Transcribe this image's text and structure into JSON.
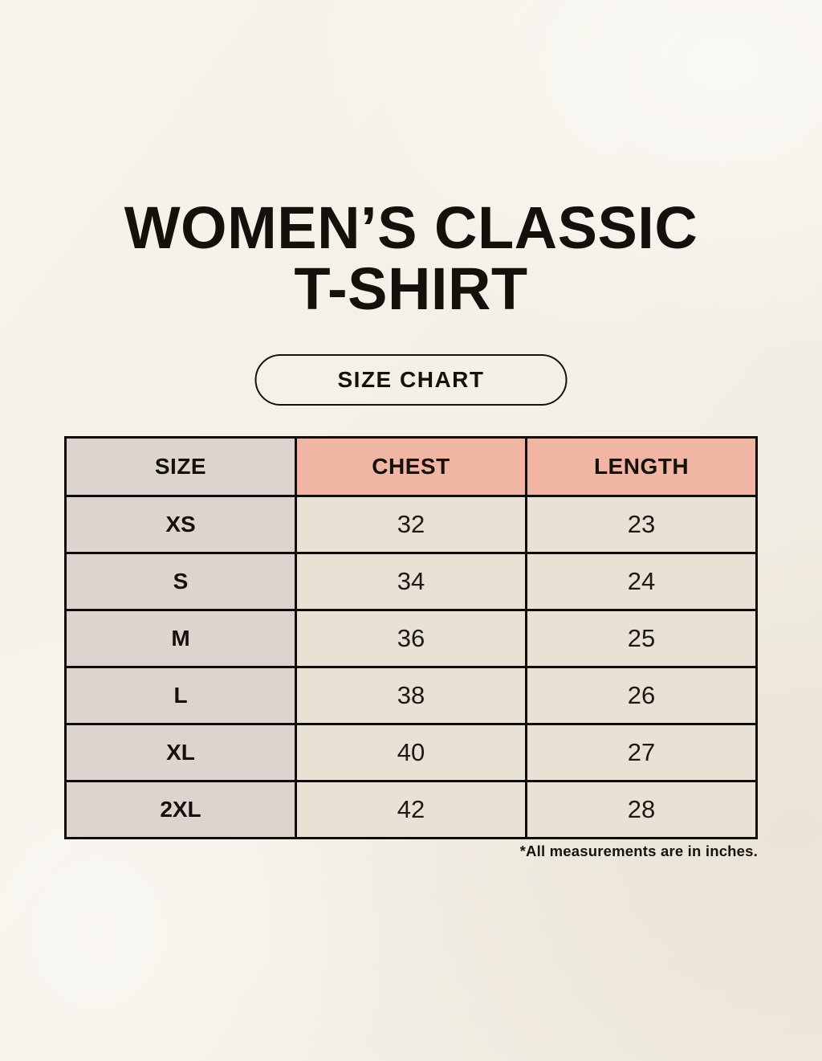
{
  "page": {
    "title_line1": "WOMEN’S CLASSIC",
    "title_line2": "T-SHIRT",
    "badge_label": "SIZE CHART",
    "footnote": "*All measurements are in inches."
  },
  "size_table": {
    "headers": [
      "SIZE",
      "CHEST",
      "LENGTH"
    ],
    "rows": [
      {
        "size": "XS",
        "chest": "32",
        "length": "23"
      },
      {
        "size": "S",
        "chest": "34",
        "length": "24"
      },
      {
        "size": "M",
        "chest": "36",
        "length": "25"
      },
      {
        "size": "L",
        "chest": "38",
        "length": "26"
      },
      {
        "size": "XL",
        "chest": "40",
        "length": "27"
      },
      {
        "size": "2XL",
        "chest": "42",
        "length": "28"
      }
    ]
  },
  "colors": {
    "background_cream": "#f4f0e7",
    "header_salmon": "#f0b5a3",
    "size_column_gray": "#ddd4cf",
    "cell_beige": "#e8e1d4",
    "table_border": "#0f0d0a",
    "text": "#14110d"
  },
  "chart_data": {
    "type": "table",
    "title": "WOMEN’S CLASSIC T-SHIRT — SIZE CHART",
    "columns": [
      "SIZE",
      "CHEST",
      "LENGTH"
    ],
    "rows": [
      [
        "XS",
        32,
        23
      ],
      [
        "S",
        34,
        24
      ],
      [
        "M",
        36,
        25
      ],
      [
        "L",
        38,
        26
      ],
      [
        "XL",
        40,
        27
      ],
      [
        "2XL",
        42,
        28
      ]
    ],
    "units": "inches"
  }
}
